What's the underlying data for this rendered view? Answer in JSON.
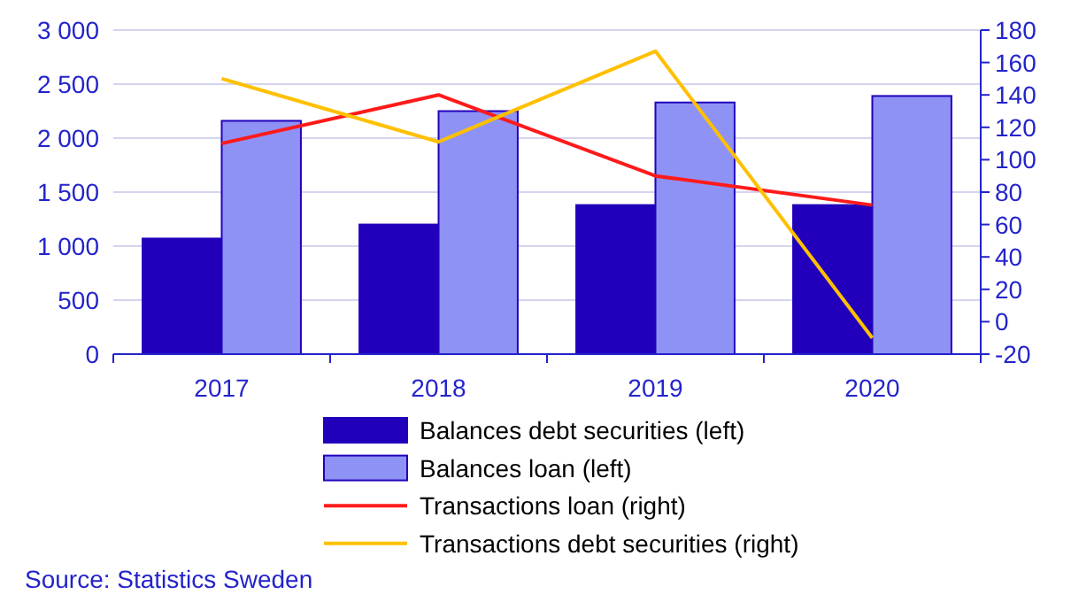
{
  "chart_data": {
    "type": "bar",
    "categories": [
      "2017",
      "2018",
      "2019",
      "2020"
    ],
    "series": [
      {
        "name": "Balances debt securities (left)",
        "color": "#2200bb",
        "values": [
          1070,
          1200,
          1380,
          1380
        ]
      },
      {
        "name": "Balances loan (left)",
        "color": "#8f92f5",
        "values": [
          2160,
          2250,
          2330,
          2390
        ]
      },
      {
        "name": "Transactions loan (right)",
        "color": "#ff1a1a",
        "type": "line",
        "axis": "y2",
        "values": [
          110,
          140,
          90,
          72
        ]
      },
      {
        "name": "Transactions debt securities (right)",
        "color": "#ffc000",
        "type": "line",
        "axis": "y2",
        "values": [
          150,
          111,
          167,
          -10
        ]
      }
    ],
    "ylim": [
      0,
      3000
    ],
    "yticks": [
      0,
      {
        "value": 500,
        "label": "500"
      },
      {
        "value": 1000,
        "label": "1 000"
      },
      {
        "value": 1500,
        "label": "1 500"
      },
      {
        "value": 2000,
        "label": "2 000"
      },
      {
        "value": 2500,
        "label": "2 500"
      },
      {
        "value": 3000,
        "label": "3 000"
      }
    ],
    "y2lim": [
      -20,
      180
    ],
    "y2ticks": [
      -20,
      0,
      20,
      40,
      60,
      80,
      100,
      120,
      140,
      160,
      180
    ],
    "grid": "y",
    "legend": "bottom",
    "marker": "none",
    "line_style": "solid",
    "annotations": [
      "Source: Statistics Sweden"
    ]
  }
}
